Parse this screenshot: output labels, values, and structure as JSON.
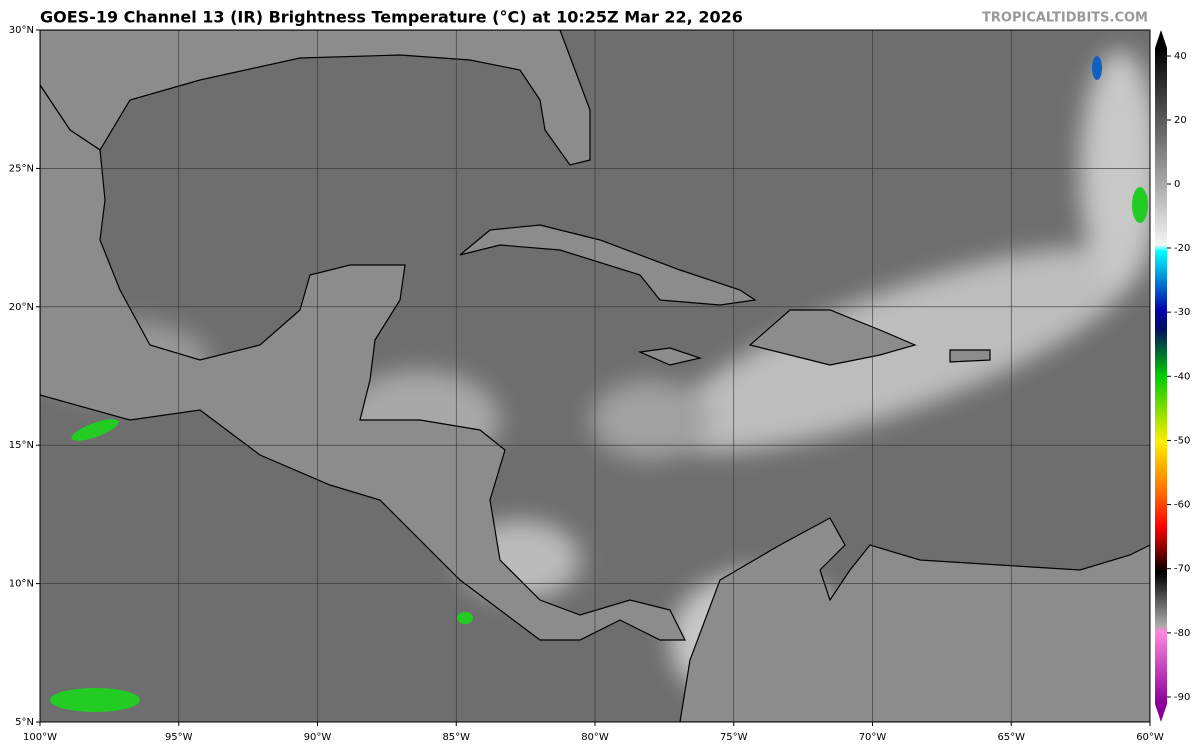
{
  "title": "GOES-19 Channel 13 (IR) Brightness Temperature (°C) at 10:25Z Mar 22, 2026",
  "site": "TROPICALTIDBITS.COM",
  "map": {
    "lon_ticks": [
      {
        "value": -100,
        "label": "100°W"
      },
      {
        "value": -95,
        "label": "95°W"
      },
      {
        "value": -90,
        "label": "90°W"
      },
      {
        "value": -85,
        "label": "85°W"
      },
      {
        "value": -80,
        "label": "80°W"
      },
      {
        "value": -75,
        "label": "75°W"
      },
      {
        "value": -70,
        "label": "70°W"
      },
      {
        "value": -65,
        "label": "65°W"
      },
      {
        "value": -60,
        "label": "60°W"
      }
    ],
    "lat_ticks": [
      {
        "value": 5,
        "label": "5°N"
      },
      {
        "value": 10,
        "label": "10°N"
      },
      {
        "value": 15,
        "label": "15°N"
      },
      {
        "value": 20,
        "label": "20°N"
      },
      {
        "value": 25,
        "label": "25°N"
      },
      {
        "value": 30,
        "label": "30°N"
      }
    ]
  },
  "colorbar": {
    "ticks": [
      40,
      20,
      0,
      -20,
      -30,
      -40,
      -50,
      -60,
      -70,
      -80,
      -90
    ]
  }
}
